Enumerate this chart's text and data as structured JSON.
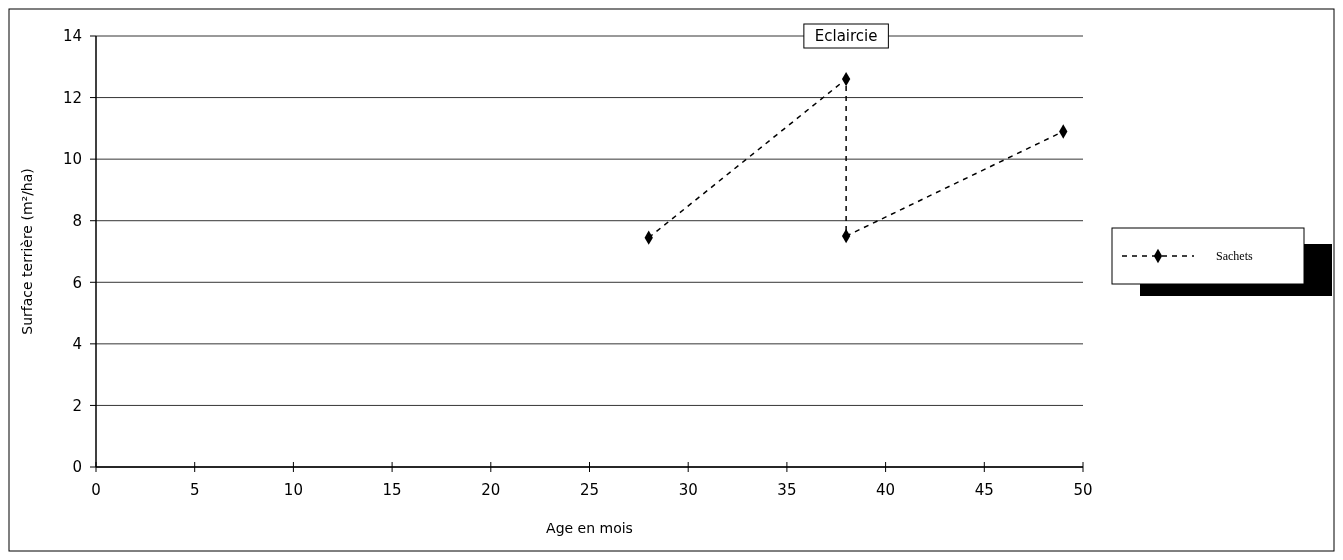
{
  "chart_data": {
    "type": "line",
    "xlabel": "Age en mois",
    "ylabel": "Surface terrière (m²/ha)",
    "series": [
      {
        "name": "Sachets",
        "color": "#000000",
        "x": [
          28,
          38,
          38,
          49
        ],
        "values": [
          7.45,
          12.6,
          7.5,
          10.9
        ]
      }
    ],
    "xlim": [
      0,
      50
    ],
    "xticks": [
      0,
      5,
      10,
      15,
      20,
      25,
      30,
      35,
      40,
      45,
      50
    ],
    "ylim": [
      0,
      14
    ],
    "yticks": [
      0,
      2,
      4,
      6,
      8,
      10,
      12,
      14
    ],
    "annotations": [
      "Eclaircie"
    ],
    "grid": "y",
    "legend": "right",
    "marker": "diamond",
    "line_style": "dashed"
  }
}
